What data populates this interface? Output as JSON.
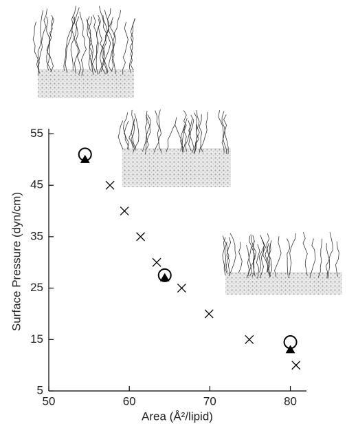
{
  "chart_data": {
    "type": "scatter",
    "xlabel": "Area (Å²/lipid)",
    "ylabel": "Surface Pressure (dyn/cm)",
    "xlim": [
      50,
      82
    ],
    "xticks": [
      50,
      60,
      70,
      80
    ],
    "ylim": [
      5,
      56
    ],
    "yticks": [
      5,
      15,
      25,
      35,
      45,
      55
    ],
    "series": [
      {
        "marker": "cross",
        "color": "#000000",
        "x": [
          57.6,
          59.4,
          61.4,
          63.4,
          66.5,
          69.9,
          74.9,
          80.7
        ],
        "values": [
          45,
          40,
          35,
          30,
          25,
          20,
          15,
          10
        ]
      },
      {
        "marker": "circle",
        "color": "#000000",
        "x": [
          54.5,
          64.4,
          80.0
        ],
        "values": [
          51,
          27.5,
          14.5
        ]
      },
      {
        "marker": "triangle",
        "color": "#000000",
        "x": [
          54.5,
          64.4,
          80.0
        ],
        "values": [
          50,
          27,
          13
        ]
      }
    ]
  }
}
